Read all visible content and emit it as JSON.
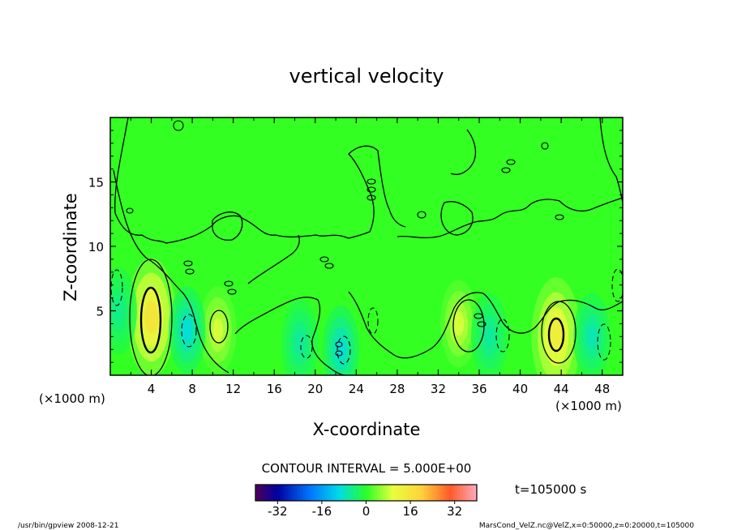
{
  "chart_data": {
    "type": "heatmap",
    "title": "vertical velocity",
    "xlabel": "X-coordinate",
    "ylabel": "Z-coordinate",
    "x_unit_left": "(×1000 m)",
    "x_unit_right": "(×1000 m)",
    "xlim": [
      0,
      50
    ],
    "ylim": [
      0,
      20
    ],
    "x_ticks": [
      "4",
      "8",
      "12",
      "16",
      "20",
      "24",
      "28",
      "32",
      "36",
      "40",
      "44",
      "48"
    ],
    "x_tick_values": [
      4,
      8,
      12,
      16,
      20,
      24,
      28,
      32,
      36,
      40,
      44,
      48
    ],
    "y_ticks": [
      "5",
      "10",
      "15"
    ],
    "y_tick_values": [
      5,
      10,
      15
    ],
    "contour_interval_label": "CONTOUR INTERVAL = 5.000E+00",
    "time_label": "t=105000 s",
    "colorbar": {
      "range": [
        -40,
        40
      ],
      "ticks": [
        "-32",
        "-16",
        "0",
        "16",
        "32"
      ],
      "tick_values": [
        -32,
        -16,
        0,
        16,
        32
      ]
    },
    "features": [
      {
        "kind": "updraft",
        "x": 4.0,
        "z": 4.5,
        "peak": 16
      },
      {
        "kind": "updraft",
        "x": 10.5,
        "z": 3.5,
        "peak": 9
      },
      {
        "kind": "updraft",
        "x": 34.0,
        "z": 4.0,
        "peak": 9
      },
      {
        "kind": "updraft",
        "x": 43.5,
        "z": 3.0,
        "peak": 14
      },
      {
        "kind": "downdraft",
        "x": 7.5,
        "z": 3.5,
        "peak": -9
      },
      {
        "kind": "downdraft",
        "x": 22.5,
        "z": 2.0,
        "peak": -9
      },
      {
        "kind": "downdraft",
        "x": 18.5,
        "z": 2.5,
        "peak": -6
      },
      {
        "kind": "downdraft",
        "x": 37.0,
        "z": 3.0,
        "peak": -6
      },
      {
        "kind": "downdraft",
        "x": 47.0,
        "z": 3.0,
        "peak": -7
      },
      {
        "kind": "downdraft",
        "x": 0.8,
        "z": 5.0,
        "peak": -5
      }
    ],
    "colors": {
      "background_field": "#33ff22",
      "plot_frame": "#000000"
    }
  },
  "footer": {
    "left": "/usr/bin/gpview  2008-12-21",
    "right": "MarsCond_VelZ.nc@VelZ,x=0:50000,z=0:20000,t=105000"
  }
}
